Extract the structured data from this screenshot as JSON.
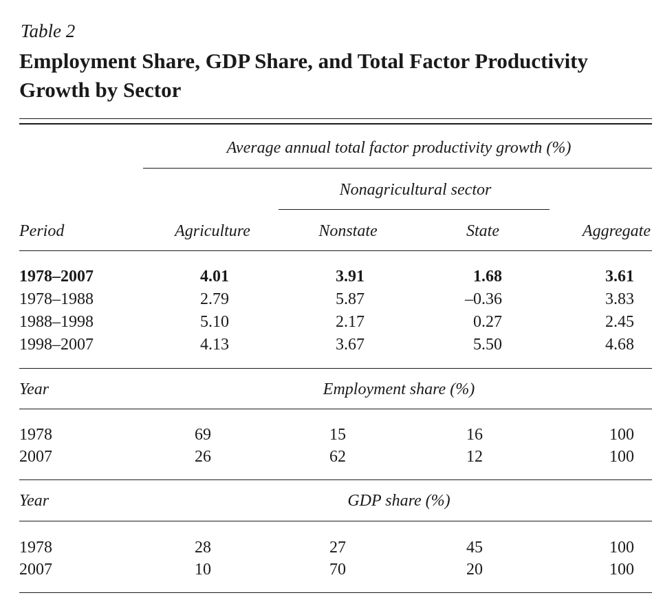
{
  "table_label": "Table 2",
  "title_line1": "Employment Share, GDP Share, and Total Factor Productivity",
  "title_line2": "Growth by Sector",
  "tfp_header": "Average annual total factor productivity growth (%)",
  "nonag_header": "Nonagricultural sector",
  "columns": {
    "period": "Period",
    "agriculture": "Agriculture",
    "nonstate": "Nonstate",
    "state": "State",
    "aggregate": "Aggregate"
  },
  "tfp_rows": [
    {
      "period": "1978–2007",
      "agriculture": "4.01",
      "nonstate": "3.91",
      "state": "1.68",
      "aggregate": "3.61"
    },
    {
      "period": "1978–1988",
      "agriculture": "2.79",
      "nonstate": "5.87",
      "state": "–0.36",
      "aggregate": "3.83"
    },
    {
      "period": "1988–1998",
      "agriculture": "5.10",
      "nonstate": "2.17",
      "state": "0.27",
      "aggregate": "2.45"
    },
    {
      "period": "1998–2007",
      "agriculture": "4.13",
      "nonstate": "3.67",
      "state": "5.50",
      "aggregate": "4.68"
    }
  ],
  "employment_section": {
    "year_label": "Year",
    "header": "Employment share (%)",
    "rows": [
      {
        "year": "1978",
        "agriculture": "69",
        "nonstate": "15",
        "state": "16",
        "aggregate": "100"
      },
      {
        "year": "2007",
        "agriculture": "26",
        "nonstate": "62",
        "state": "12",
        "aggregate": "100"
      }
    ]
  },
  "gdp_section": {
    "year_label": "Year",
    "header": "GDP share (%)",
    "rows": [
      {
        "year": "1978",
        "agriculture": "28",
        "nonstate": "27",
        "state": "45",
        "aggregate": "100"
      },
      {
        "year": "2007",
        "agriculture": "10",
        "nonstate": "70",
        "state": "20",
        "aggregate": "100"
      }
    ]
  }
}
